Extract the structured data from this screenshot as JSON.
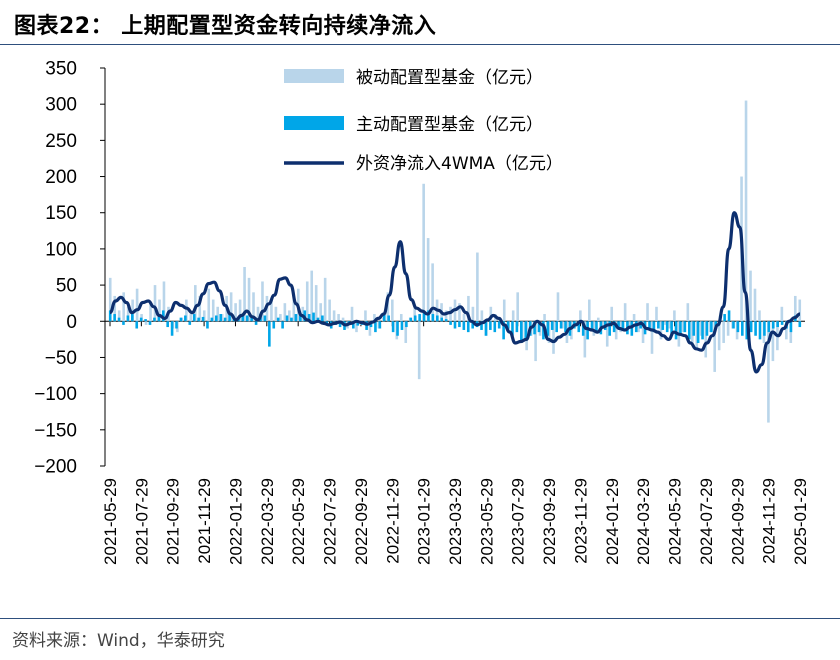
{
  "header": {
    "title": "图表22：  上期配置型资金转向持续净流入"
  },
  "footer": {
    "source": "资料来源：Wind，华泰研究"
  },
  "colors": {
    "passive": "#b9d5ea",
    "active": "#00a6e8",
    "line": "#0d2f6e",
    "rule": "#2e4f7d"
  },
  "chart_data": {
    "type": "bar+line",
    "title": "上期配置型资金转向持续净流入",
    "ylim": [
      -200,
      350
    ],
    "yticks": [
      "350",
      "300",
      "250",
      "200",
      "150",
      "100",
      "50",
      "0",
      "−50",
      "−100",
      "−150",
      "−200"
    ],
    "ytick_values": [
      350,
      300,
      250,
      200,
      150,
      100,
      50,
      0,
      -50,
      -100,
      -150,
      -200
    ],
    "xticks": [
      "2021-05-29",
      "2021-07-29",
      "2021-09-29",
      "2021-11-29",
      "2022-01-29",
      "2022-03-29",
      "2022-05-29",
      "2022-07-29",
      "2022-09-29",
      "2022-11-29",
      "2023-01-29",
      "2023-03-29",
      "2023-05-29",
      "2023-07-29",
      "2023-09-29",
      "2023-11-29",
      "2024-01-29",
      "2024-03-29",
      "2024-05-29",
      "2024-07-29",
      "2024-09-29",
      "2024-11-29",
      "2025-01-29"
    ],
    "legend": [
      "被动配置型基金（亿元）",
      "主动配置型基金（亿元）",
      "外资净流入4WMA（亿元）"
    ],
    "series": [
      {
        "name": "被动配置型基金（亿元）",
        "kind": "bar",
        "values": [
          60,
          35,
          15,
          40,
          20,
          30,
          45,
          10,
          -5,
          25,
          50,
          30,
          55,
          20,
          -10,
          -15,
          5,
          30,
          10,
          50,
          35,
          15,
          45,
          30,
          20,
          10,
          35,
          40,
          25,
          30,
          75,
          60,
          40,
          20,
          55,
          35,
          30,
          20,
          10,
          25,
          15,
          30,
          45,
          20,
          55,
          70,
          50,
          25,
          60,
          30,
          15,
          10,
          5,
          -10,
          20,
          -15,
          -5,
          15,
          -20,
          10,
          -10,
          5,
          40,
          30,
          -25,
          10,
          -30,
          5,
          20,
          -80,
          190,
          115,
          80,
          30,
          25,
          15,
          20,
          30,
          25,
          10,
          35,
          20,
          95,
          15,
          -20,
          20,
          10,
          5,
          30,
          -10,
          15,
          40,
          -25,
          -40,
          -20,
          -55,
          -20,
          10,
          -30,
          -45,
          40,
          -10,
          -30,
          -25,
          -5,
          15,
          -50,
          30,
          -20,
          5,
          -10,
          -35,
          20,
          -25,
          -15,
          25,
          -10,
          10,
          -15,
          -30,
          25,
          -45,
          20,
          -25,
          -5,
          -10,
          15,
          -35,
          -15,
          25,
          -30,
          -40,
          -20,
          -50,
          -15,
          -70,
          -40,
          -30,
          -20,
          -10,
          -25,
          200,
          305,
          70,
          45,
          15,
          -30,
          -140,
          -55,
          -40,
          20,
          -25,
          -30,
          35,
          30
        ],
        "color": "#b9d5ea"
      },
      {
        "name": "主动配置型基金（亿元）",
        "kind": "bar",
        "values": [
          15,
          10,
          5,
          -5,
          8,
          10,
          -10,
          5,
          3,
          -5,
          5,
          10,
          15,
          -8,
          -20,
          -10,
          5,
          8,
          -5,
          10,
          5,
          6,
          -10,
          5,
          8,
          10,
          5,
          12,
          5,
          5,
          10,
          8,
          5,
          -5,
          10,
          8,
          -35,
          -10,
          5,
          -10,
          8,
          5,
          10,
          8,
          15,
          10,
          12,
          5,
          8,
          -5,
          -10,
          -5,
          -8,
          -12,
          -5,
          -10,
          -6,
          -5,
          -12,
          -8,
          -15,
          -10,
          12,
          8,
          -15,
          -20,
          -12,
          -8,
          5,
          8,
          10,
          12,
          15,
          10,
          8,
          5,
          3,
          -5,
          -10,
          -8,
          -12,
          -15,
          -10,
          -8,
          -12,
          -20,
          -12,
          -15,
          -10,
          -25,
          -12,
          -20,
          -15,
          -30,
          -25,
          -20,
          -18,
          -15,
          -25,
          -20,
          -12,
          -15,
          -10,
          -15,
          -20,
          -10,
          -15,
          -20,
          -25,
          -10,
          -15,
          -18,
          -12,
          -20,
          -15,
          -10,
          -12,
          -18,
          -20,
          -15,
          -10,
          -18,
          -12,
          -15,
          -10,
          -12,
          -15,
          -20,
          -25,
          -20,
          -15,
          -25,
          -20,
          -30,
          -25,
          -20,
          -15,
          -10,
          8,
          10,
          15,
          -10,
          -15,
          -20,
          -25,
          -15,
          -20,
          -25,
          -20,
          -15,
          -10,
          -8,
          -5,
          -10,
          -15,
          8,
          -8
        ],
        "color": "#00a6e8"
      },
      {
        "name": "外资净流入4WMA（亿元）",
        "kind": "line",
        "values": [
          12,
          28,
          33,
          26,
          12,
          16,
          26,
          28,
          20,
          8,
          4,
          14,
          26,
          22,
          18,
          12,
          22,
          38,
          52,
          54,
          42,
          22,
          10,
          2,
          8,
          14,
          6,
          2,
          14,
          24,
          36,
          58,
          60,
          50,
          24,
          8,
          2,
          -2,
          0,
          -3,
          -5,
          -3,
          -1,
          -5,
          -3,
          0,
          -2,
          -4,
          -1,
          4,
          10,
          36,
          75,
          110,
          66,
          30,
          18,
          14,
          10,
          18,
          15,
          10,
          12,
          16,
          20,
          12,
          0,
          -5,
          -2,
          2,
          8,
          4,
          -5,
          -15,
          -30,
          -28,
          -25,
          -8,
          0,
          -5,
          -25,
          -28,
          -22,
          -18,
          -10,
          -5,
          0,
          -10,
          -12,
          -15,
          -8,
          -5,
          -3,
          -10,
          -12,
          -8,
          -5,
          -3,
          -10,
          -12,
          -15,
          -20,
          -25,
          -15,
          -18,
          -20,
          -30,
          -38,
          -40,
          -30,
          -20,
          -5,
          20,
          100,
          150,
          130,
          40,
          -40,
          -70,
          -60,
          -30,
          -15,
          -20,
          -10,
          0,
          5,
          10
        ],
        "color": "#0d2f6e"
      }
    ]
  }
}
